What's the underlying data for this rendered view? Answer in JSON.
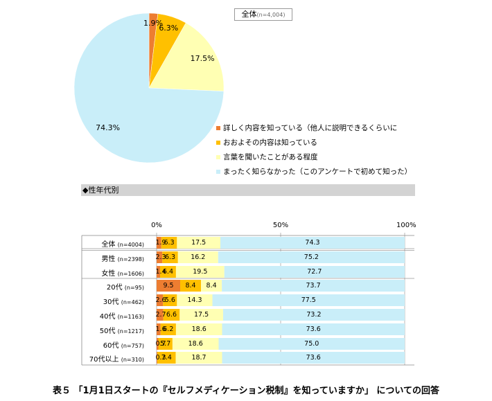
{
  "pie_title": "全体",
  "pie_subtitle": "(n=4,004)",
  "section_title": "◆性年代別",
  "caption": "表５ 「1月1日スタートの『セルフメディケーション税制』を知っていますか」 についての回答",
  "colors": [
    "#ED7D31",
    "#FFC000",
    "#FFFFB3",
    "#C9EEF9"
  ],
  "chart_data": [
    {
      "type": "pie",
      "title": "全体(n=4,004)",
      "categories": [
        "詳しく内容を知っている（他人に説明できるくらいに",
        "おおよその内容は知っている",
        "言葉を聞いたことがある程度",
        "まったく知らなかった（このアンケートで初めて知った）"
      ],
      "values": [
        1.9,
        6.3,
        17.5,
        74.3
      ],
      "value_labels": [
        "1.9%",
        "6.3%",
        "17.5%",
        "74.3%"
      ],
      "legend": "right"
    },
    {
      "type": "bar",
      "orientation": "horizontal",
      "stacked": true,
      "title": "◆性年代別",
      "xlim": [
        0,
        100
      ],
      "xticks": [
        "0%",
        "50%",
        "100%"
      ],
      "rows": [
        {
          "label": "全体",
          "n": "(n=4004)",
          "values": [
            1.9,
            6.3,
            17.5,
            74.3
          ],
          "labels": [
            "1.9",
            "6.3",
            "17.5",
            "74.3"
          ]
        },
        {
          "label": "男性",
          "n": "(n=2398)",
          "values": [
            2.3,
            6.3,
            16.2,
            75.2
          ],
          "labels": [
            "2.3",
            "6.3",
            "16.2",
            "75.2"
          ]
        },
        {
          "label": "女性",
          "n": "(n=1606)",
          "values": [
            1.4,
            6.4,
            19.5,
            72.7
          ],
          "labels": [
            "1.4",
            "6.4",
            "19.5",
            "72.7"
          ]
        },
        {
          "label": "20代",
          "n": "(n=95)",
          "values": [
            9.5,
            8.4,
            8.4,
            73.7
          ],
          "labels": [
            "9.5",
            "8.4",
            "8.4",
            "73.7"
          ]
        },
        {
          "label": "30代",
          "n": "(n=462)",
          "values": [
            2.6,
            5.6,
            14.3,
            77.5
          ],
          "labels": [
            "2.6",
            "5.6",
            "14.3",
            "77.5"
          ]
        },
        {
          "label": "40代",
          "n": "(n=1163)",
          "values": [
            2.7,
            6.6,
            17.5,
            73.2
          ],
          "labels": [
            "2.7",
            "6.6",
            "17.5",
            "73.2"
          ]
        },
        {
          "label": "50代",
          "n": "(n=1217)",
          "values": [
            1.6,
            6.2,
            18.6,
            73.6
          ],
          "labels": [
            "1.6",
            "6.2",
            "18.6",
            "73.6"
          ]
        },
        {
          "label": "60代",
          "n": "(n=757)",
          "values": [
            0.7,
            5.7,
            18.6,
            75.0
          ],
          "labels": [
            "0.7",
            "5.7",
            "18.6",
            "75.0"
          ]
        },
        {
          "label": "70代以上",
          "n": "(n=310)",
          "values": [
            0.3,
            7.4,
            18.7,
            73.6
          ],
          "labels": [
            "0.3",
            "7.4",
            "18.7",
            "73.6"
          ]
        }
      ]
    }
  ]
}
